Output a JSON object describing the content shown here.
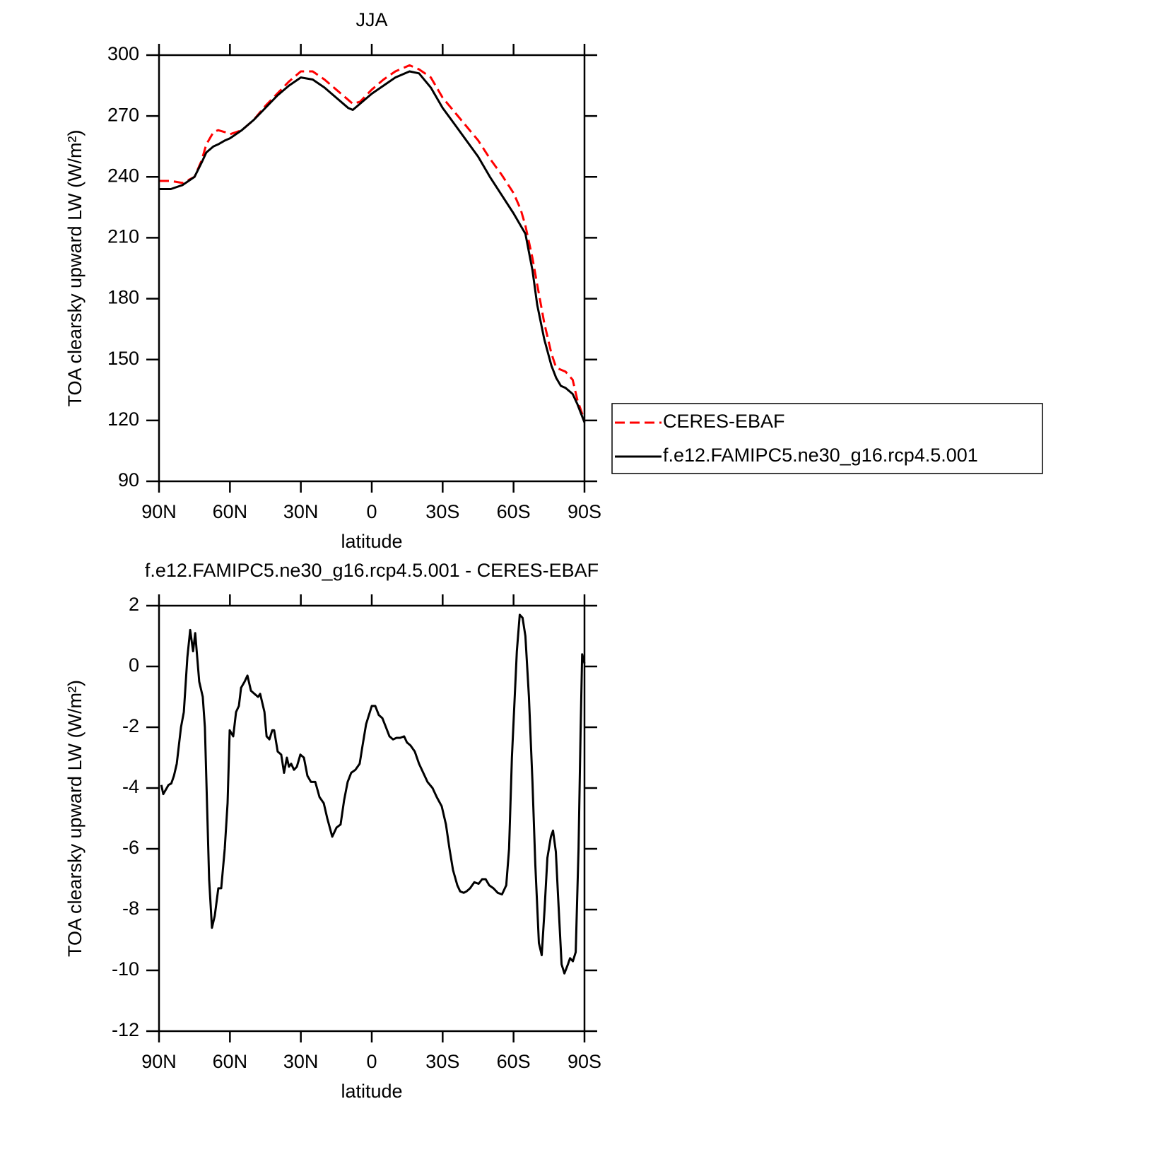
{
  "chart_data": [
    {
      "type": "line",
      "title": "JJA",
      "xlabel": "latitude",
      "ylabel": "TOA clearsky upward LW (W/m²)",
      "x": [
        90,
        85,
        80,
        75,
        72,
        70,
        67,
        65,
        62,
        60,
        55,
        50,
        45,
        40,
        35,
        30,
        25,
        20,
        15,
        10,
        8,
        5,
        0,
        -5,
        -10,
        -16,
        -20,
        -25,
        -30,
        -35,
        -40,
        -45,
        -50,
        -55,
        -60,
        -63,
        -65,
        -68,
        -70,
        -73,
        -76,
        -78,
        -80,
        -82,
        -85,
        -87,
        -90
      ],
      "series": [
        {
          "name": "CERES-EBAF",
          "color": "#ff0000",
          "dashed": true,
          "values": [
            238,
            238,
            237,
            240,
            248,
            256,
            262,
            263,
            262,
            261,
            263,
            268,
            275,
            281,
            287,
            292,
            292,
            288,
            283,
            278,
            276,
            277,
            283,
            288,
            292,
            295,
            293,
            289,
            279,
            272,
            265,
            258,
            249,
            241,
            232,
            224,
            216,
            200,
            187,
            168,
            153,
            146,
            145,
            144,
            140,
            130,
            120
          ]
        },
        {
          "name": "f.e12.FAMIPC5.ne30_g16.rcp4.5.001",
          "color": "#000000",
          "dashed": false,
          "values": [
            234,
            234,
            236,
            240,
            247,
            252,
            255,
            256,
            258,
            259,
            263,
            268,
            274,
            280,
            285,
            289,
            288,
            284,
            279,
            274,
            273,
            276,
            281,
            285,
            289,
            292,
            291,
            284,
            274,
            266,
            258,
            250,
            240,
            231,
            222,
            216,
            212,
            194,
            177,
            160,
            147,
            141,
            137,
            136,
            133,
            128,
            119
          ]
        }
      ],
      "xlim": [
        90,
        -90
      ],
      "xticks": [
        {
          "value": 90,
          "label": "90N"
        },
        {
          "value": 60,
          "label": "60N"
        },
        {
          "value": 30,
          "label": "30N"
        },
        0,
        {
          "value": -30,
          "label": "30S"
        },
        {
          "value": -60,
          "label": "60S"
        },
        {
          "value": -90,
          "label": "90S"
        }
      ],
      "ylim": [
        90,
        300
      ],
      "yticks": [
        90,
        120,
        150,
        180,
        210,
        240,
        270,
        300
      ]
    },
    {
      "type": "line",
      "title": "f.e12.FAMIPC5.ne30_g16.rcp4.5.001 - CERES-EBAF",
      "xlabel": "latitude",
      "ylabel": "TOA clearsky upward LW (W/m²)",
      "color": "#000000",
      "x": [
        89,
        88.2,
        86,
        84.8,
        83.7,
        82.5,
        80.7,
        79.5,
        78,
        76.8,
        75.6,
        74.7,
        73,
        71.5,
        70.6,
        69.7,
        68.8,
        67.6,
        66.4,
        64.9,
        63.7,
        62.2,
        61,
        60.1,
        58.6,
        57.4,
        56.2,
        55.3,
        53.8,
        52.6,
        51.1,
        49.6,
        48.1,
        47.2,
        45.4,
        44.5,
        43.3,
        42.1,
        41.3,
        39.8,
        38.3,
        37.1,
        35.9,
        35,
        34.1,
        32.9,
        31.7,
        30.2,
        28.7,
        27.2,
        25.7,
        23.9,
        22.1,
        20.3,
        18.8,
        16.7,
        14.9,
        13.2,
        11.7,
        10.2,
        8.7,
        6.9,
        5.1,
        3.9,
        2.4,
        1.2,
        0,
        -1.5,
        -3,
        -4.5,
        -6,
        -7.5,
        -9,
        -10.5,
        -12,
        -13.7,
        -14.9,
        -16.4,
        -18.2,
        -20,
        -21.8,
        -23.6,
        -25.7,
        -27.5,
        -29.6,
        -31.4,
        -32.9,
        -34.4,
        -36.2,
        -37.4,
        -38.9,
        -40.1,
        -41.6,
        -43.4,
        -45.2,
        -46.7,
        -48.2,
        -49.7,
        -51.5,
        -53.3,
        -55.1,
        -56.9,
        -58.1,
        -59.3,
        -60.5,
        -61.4,
        -62.6,
        -63.8,
        -65,
        -66.5,
        -68,
        -69.2,
        -70.7,
        -71.9,
        -73.1,
        -74.3,
        -75.8,
        -76.7,
        -77.9,
        -78.8,
        -80.3,
        -81.5,
        -83,
        -83.9,
        -85.1,
        -86.3,
        -87.5,
        -88.4,
        -89,
        -90
      ],
      "values": [
        -3.9,
        -4.2,
        -3.9,
        -3.85,
        -3.6,
        -3.2,
        -2,
        -1.5,
        0.3,
        1.2,
        0.5,
        1.1,
        -0.5,
        -1,
        -2,
        -4.5,
        -7,
        -8.6,
        -8.2,
        -7.3,
        -7.3,
        -6,
        -4.5,
        -2.1,
        -2.3,
        -1.5,
        -1.3,
        -0.7,
        -0.5,
        -0.3,
        -0.8,
        -0.9,
        -1,
        -0.9,
        -1.5,
        -2.3,
        -2.4,
        -2.1,
        -2.1,
        -2.8,
        -2.9,
        -3.5,
        -3,
        -3.3,
        -3.2,
        -3.4,
        -3.3,
        -2.9,
        -3,
        -3.6,
        -3.8,
        -3.8,
        -4.3,
        -4.5,
        -5,
        -5.6,
        -5.3,
        -5.2,
        -4.4,
        -3.8,
        -3.5,
        -3.4,
        -3.2,
        -2.6,
        -1.9,
        -1.6,
        -1.3,
        -1.3,
        -1.6,
        -1.7,
        -2,
        -2.3,
        -2.4,
        -2.35,
        -2.35,
        -2.3,
        -2.5,
        -2.6,
        -2.8,
        -3.2,
        -3.5,
        -3.8,
        -4,
        -4.3,
        -4.6,
        -5.2,
        -6,
        -6.7,
        -7.2,
        -7.4,
        -7.45,
        -7.4,
        -7.3,
        -7.1,
        -7.15,
        -7,
        -7,
        -7.2,
        -7.3,
        -7.45,
        -7.5,
        -7.2,
        -6,
        -3,
        -1,
        0.5,
        1.7,
        1.6,
        1,
        -1,
        -3.8,
        -6.5,
        -9.1,
        -9.5,
        -8,
        -6.3,
        -5.6,
        -5.4,
        -6.1,
        -7.5,
        -9.8,
        -10.1,
        -9.8,
        -9.6,
        -9.7,
        -9.4,
        -6,
        -2,
        0.4,
        0.1
      ],
      "xlim": [
        90,
        -90
      ],
      "xticks": [
        {
          "value": 90,
          "label": "90N"
        },
        {
          "value": 60,
          "label": "60N"
        },
        {
          "value": 30,
          "label": "30N"
        },
        0,
        {
          "value": -30,
          "label": "30S"
        },
        {
          "value": -60,
          "label": "60S"
        },
        {
          "value": -90,
          "label": "90S"
        }
      ],
      "ylim": [
        -12,
        2
      ],
      "yticks": [
        -12,
        -10,
        -8,
        -6,
        -4,
        -2,
        0,
        2
      ]
    }
  ]
}
